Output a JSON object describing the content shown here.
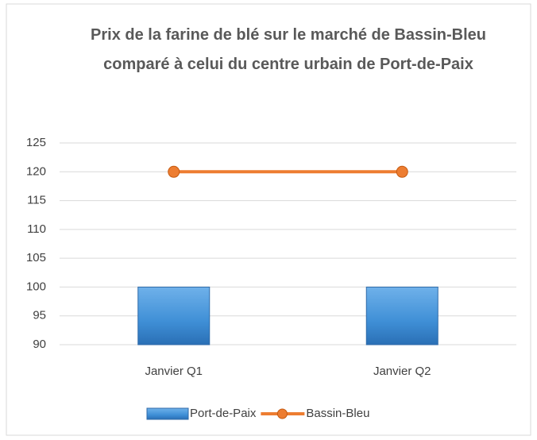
{
  "chart_data": {
    "type": "combo",
    "title": "Prix de la farine de blé sur le marché de Bassin-Bleu comparé à celui du centre urbain de Port-de-Paix",
    "categories": [
      "Janvier Q1",
      "Janvier Q2"
    ],
    "series": [
      {
        "name": "Port-de-Paix",
        "type": "bar",
        "color": "#4f97d6",
        "values": [
          100,
          100
        ]
      },
      {
        "name": "Bassin-Bleu",
        "type": "line",
        "color": "#ed7d31",
        "values": [
          120,
          120
        ]
      }
    ],
    "ylim": [
      90,
      125
    ],
    "yticks": [
      90,
      95,
      100,
      105,
      110,
      115,
      120,
      125
    ],
    "grid": true,
    "legend": "bottom"
  }
}
